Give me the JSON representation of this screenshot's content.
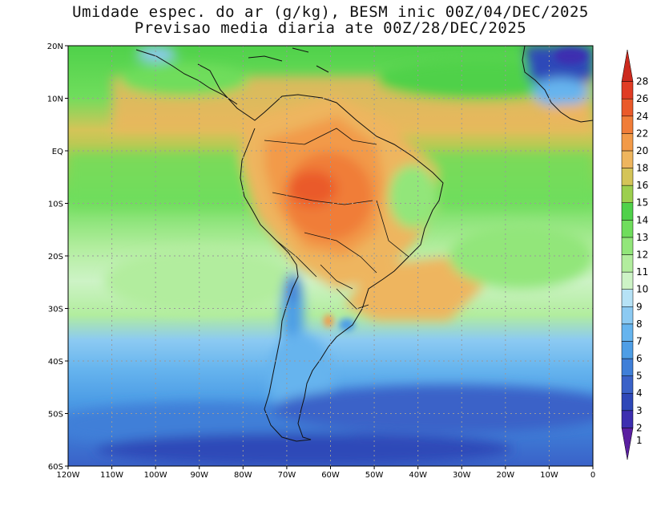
{
  "title_line1": "Umidade espec. do ar (g/kg), BESM inic 00Z/04/DEC/2025",
  "title_line2": "Previsao media diaria ate 00Z/28/DEC/2025",
  "map": {
    "lon_range": [
      -120,
      0
    ],
    "lat_range": [
      -60,
      20
    ],
    "lat_ticks": [
      {
        "v": 20,
        "label": "20N"
      },
      {
        "v": 10,
        "label": "10N"
      },
      {
        "v": 0,
        "label": "EQ"
      },
      {
        "v": -10,
        "label": "10S"
      },
      {
        "v": -20,
        "label": "20S"
      },
      {
        "v": -30,
        "label": "30S"
      },
      {
        "v": -40,
        "label": "40S"
      },
      {
        "v": -50,
        "label": "50S"
      },
      {
        "v": -60,
        "label": "60S"
      }
    ],
    "lon_ticks": [
      {
        "v": -120,
        "label": "120W"
      },
      {
        "v": -110,
        "label": "110W"
      },
      {
        "v": -100,
        "label": "100W"
      },
      {
        "v": -90,
        "label": "90W"
      },
      {
        "v": -80,
        "label": "80W"
      },
      {
        "v": -70,
        "label": "70W"
      },
      {
        "v": -60,
        "label": "60W"
      },
      {
        "v": -50,
        "label": "50W"
      },
      {
        "v": -40,
        "label": "40W"
      },
      {
        "v": -30,
        "label": "30W"
      },
      {
        "v": -20,
        "label": "20W"
      },
      {
        "v": -10,
        "label": "10W"
      },
      {
        "v": 0,
        "label": "0"
      }
    ],
    "regions": [
      {
        "name": "tropical-belt",
        "level": 14
      },
      {
        "name": "central-south-america-max",
        "level": 22
      },
      {
        "name": "south-atlantic-plume",
        "level": 18
      },
      {
        "name": "patagonia",
        "level": 5
      },
      {
        "name": "southern-ocean",
        "level": 4
      },
      {
        "name": "sahara",
        "level": 3
      }
    ]
  },
  "colorbar": {
    "levels": [
      {
        "label": "1",
        "color": "#5a1fa0"
      },
      {
        "label": "2",
        "color": "#3d2fb0"
      },
      {
        "label": "3",
        "color": "#2e48b8"
      },
      {
        "label": "4",
        "color": "#3a62c8"
      },
      {
        "label": "5",
        "color": "#3f7fd8"
      },
      {
        "label": "6",
        "color": "#4e9ee6"
      },
      {
        "label": "7",
        "color": "#66b4ee"
      },
      {
        "label": "8",
        "color": "#8ccaf2"
      },
      {
        "label": "9",
        "color": "#b6e2f6"
      },
      {
        "label": "10",
        "color": "#cdf3c6"
      },
      {
        "label": "11",
        "color": "#b2ed9e"
      },
      {
        "label": "12",
        "color": "#92e67a"
      },
      {
        "label": "13",
        "color": "#6fdd5c"
      },
      {
        "label": "14",
        "color": "#4fd14a"
      },
      {
        "label": "15",
        "color": "#9ccf4e"
      },
      {
        "label": "16",
        "color": "#d4c458"
      },
      {
        "label": "18",
        "color": "#eeb55e"
      },
      {
        "label": "20",
        "color": "#f29a48"
      },
      {
        "label": "22",
        "color": "#f07d38"
      },
      {
        "label": "24",
        "color": "#ea5a2a"
      },
      {
        "label": "26",
        "color": "#e03c24"
      },
      {
        "label": "28",
        "color": "#cc2a1e"
      }
    ]
  }
}
